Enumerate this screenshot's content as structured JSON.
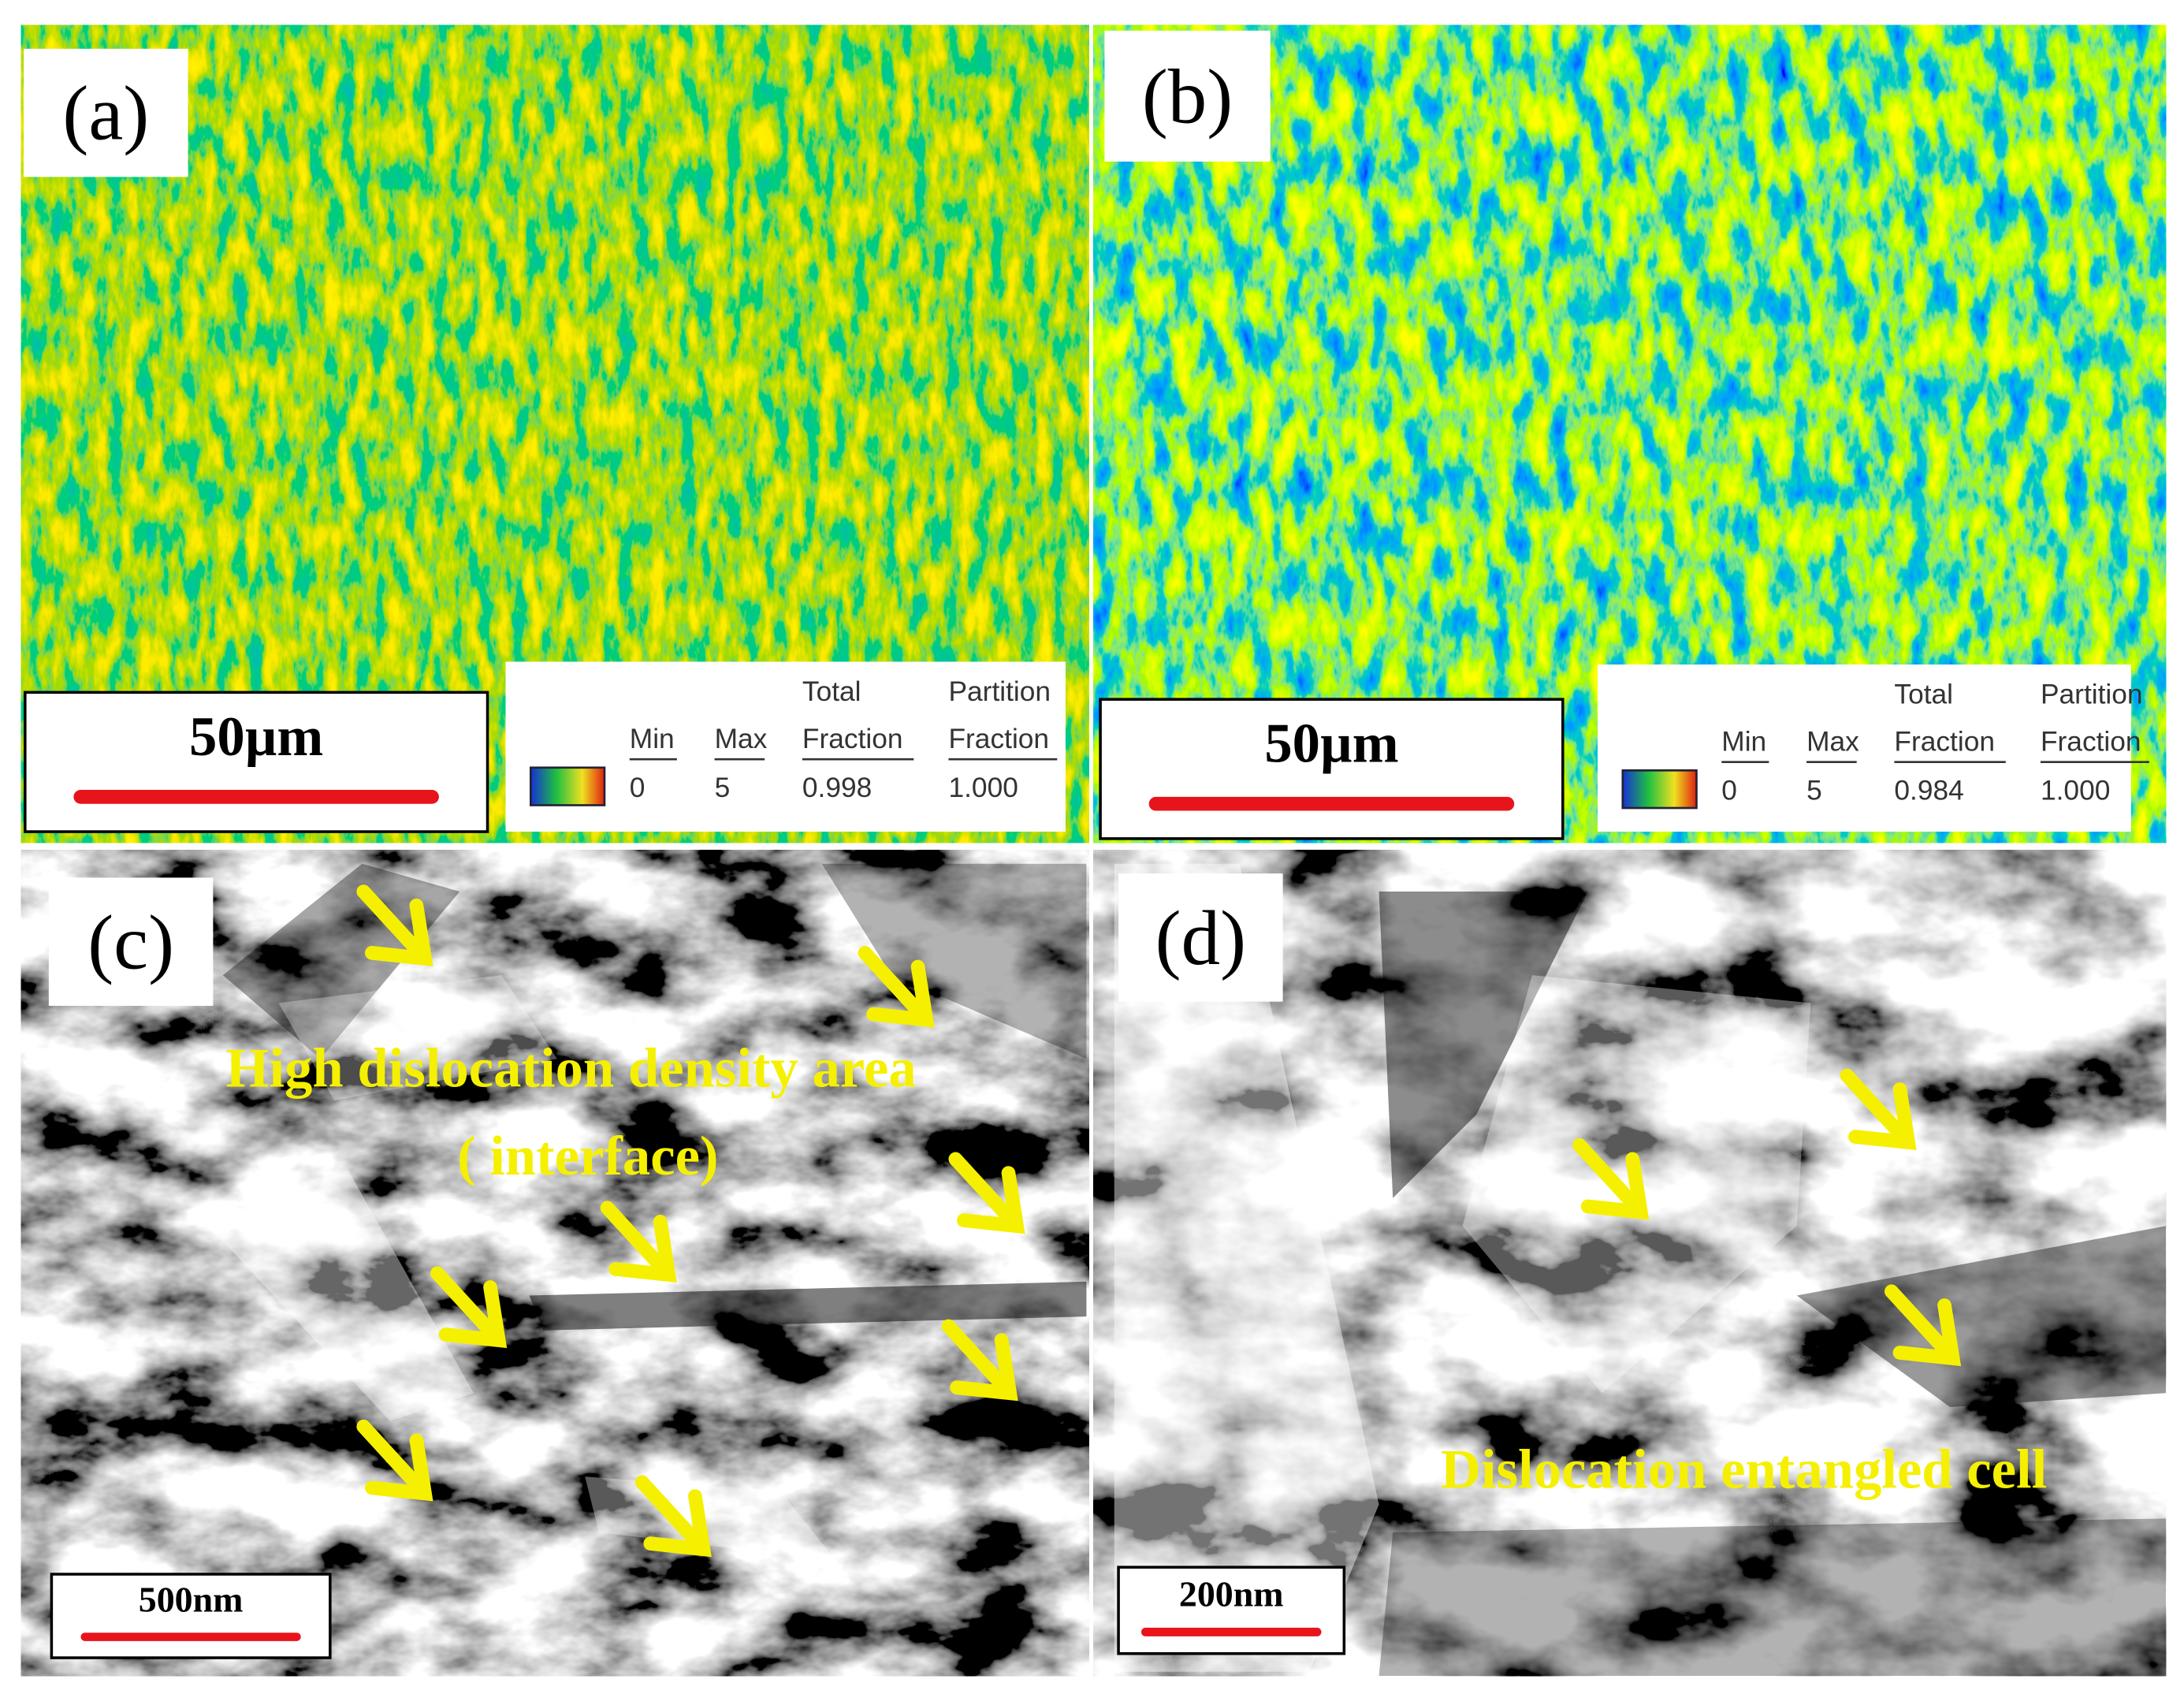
{
  "panels": [
    {
      "label": "(a)",
      "scale_bar": "50µm",
      "legend": {
        "min": "Min",
        "max": "Max",
        "total": [
          "Total",
          "Fraction"
        ],
        "partition": [
          "Partition",
          "Fraction"
        ],
        "values": [
          "0",
          "5",
          "0.998",
          "1.000"
        ]
      }
    },
    {
      "label": "(b)",
      "scale_bar": "50µm",
      "legend": {
        "min": "Min",
        "max": "Max",
        "total": [
          "Total",
          "Fraction"
        ],
        "partition": [
          "Partition",
          "Fraction"
        ],
        "values": [
          "0",
          "5",
          "0.984",
          "1.000"
        ]
      }
    },
    {
      "label": "(c)",
      "scale_bar": "500nm",
      "annotations": [
        "High dislocation density area",
        "( interface)"
      ]
    },
    {
      "label": "(d)",
      "scale_bar": "200nm",
      "annotations": [
        "Dislocation entangled cell"
      ]
    }
  ]
}
